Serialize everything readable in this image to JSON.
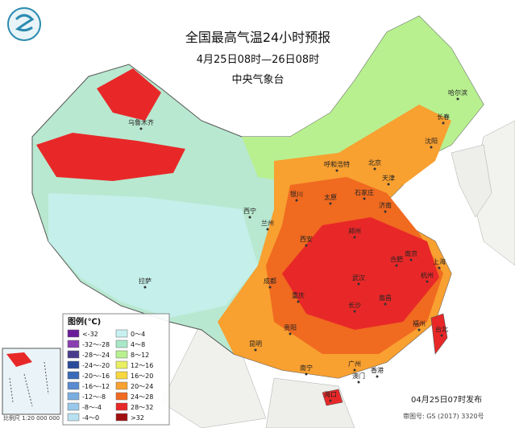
{
  "header": {
    "title": "全国最高气温24小时预报",
    "period": "4月25日08时—26日08时",
    "agency": "中央气象台"
  },
  "legend": {
    "title": "图例(℃)",
    "items": [
      {
        "label": "<-32",
        "color": "#6a1b9a"
      },
      {
        "label": "-32～-28",
        "color": "#8a3fb0"
      },
      {
        "label": "-28～-24",
        "color": "#4a3c8c"
      },
      {
        "label": "-24～-20",
        "color": "#2a4a9a"
      },
      {
        "label": "-20～-16",
        "color": "#3a6ab8"
      },
      {
        "label": "-16～-12",
        "color": "#5a8ad0"
      },
      {
        "label": "-12～-8",
        "color": "#7aaee0"
      },
      {
        "label": "-8～-4",
        "color": "#98c8ea"
      },
      {
        "label": "-4～0",
        "color": "#b8e0f0"
      },
      {
        "label": "0～4",
        "color": "#c8f0f0"
      },
      {
        "label": "4～8",
        "color": "#a8e8c8"
      },
      {
        "label": "8～12",
        "color": "#b8f090"
      },
      {
        "label": "12～16",
        "color": "#e8f060"
      },
      {
        "label": "16～20",
        "color": "#f8d840"
      },
      {
        "label": "20～24",
        "color": "#f8a030"
      },
      {
        "label": "24～28",
        "color": "#f06a20"
      },
      {
        "label": "28～32",
        "color": "#e82828"
      },
      {
        "label": ">32",
        "color": "#a01010"
      }
    ]
  },
  "cities": [
    "乌鲁木齐",
    "拉萨",
    "西宁",
    "兰州",
    "银川",
    "呼和浩特",
    "北京",
    "天津",
    "石家庄",
    "太原",
    "济南",
    "郑州",
    "西安",
    "成都",
    "重庆",
    "贵阳",
    "昆明",
    "南宁",
    "海口",
    "广州",
    "香港",
    "澳门",
    "长沙",
    "南昌",
    "武汉",
    "合肥",
    "南京",
    "上海",
    "杭州",
    "福州",
    "台北",
    "沈阳",
    "长春",
    "哈尔滨"
  ],
  "footer": {
    "release": "04月25日07时发布",
    "scale": "比例尺 1:20 000 000",
    "review": "审图号: GS (2017) 3320号"
  }
}
